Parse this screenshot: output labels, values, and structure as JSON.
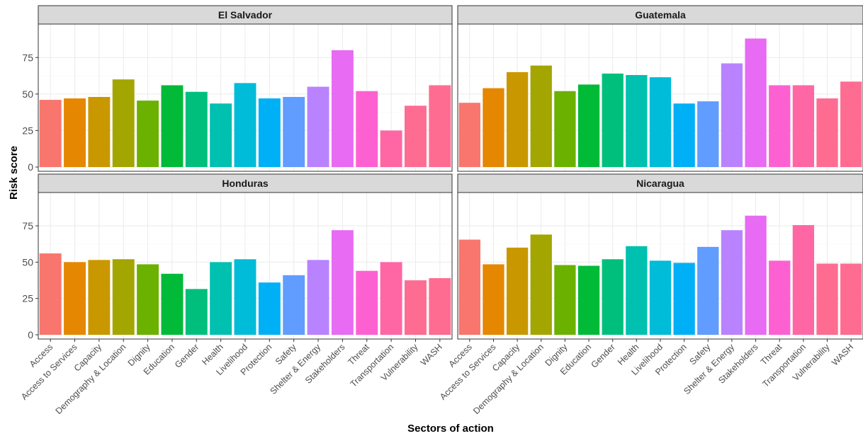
{
  "chart_data": {
    "type": "bar",
    "xlabel": "Sectors of action",
    "ylabel": "Risk score",
    "ylim": [
      0,
      95
    ],
    "yticks": [
      0,
      25,
      50,
      75
    ],
    "grid": true,
    "legend": "none",
    "categories": [
      "Access",
      "Access to Services",
      "Capacity",
      "Demography & Location",
      "Dignity",
      "Education",
      "Gender",
      "Health",
      "Livelihood",
      "Protection",
      "Safety",
      "Shelter & Energy",
      "Stakeholders",
      "Threat",
      "Transportation",
      "Vulnerability",
      "WASH"
    ],
    "colors": [
      "#F8766D",
      "#E58700",
      "#C99800",
      "#A3A500",
      "#6BB100",
      "#00BA38",
      "#00BF7D",
      "#00C0AF",
      "#00BCD8",
      "#00B0F6",
      "#619CFF",
      "#B983FF",
      "#E76BF3",
      "#FD61D1",
      "#FF67A4",
      "#FF6C91",
      "#FF6C91"
    ],
    "panels": [
      {
        "title": "El Salvador",
        "categories": [
          "Access",
          "Access to Services",
          "Capacity",
          "Demography & Location",
          "Dignity",
          "Education",
          "Gender",
          "Health",
          "Livelihood",
          "Protection",
          "Safety",
          "Shelter & Energy",
          "Stakeholders",
          "Threat",
          "Transportation",
          "Vulnerability",
          "WASH"
        ],
        "values": [
          46,
          47,
          48,
          60,
          45.5,
          56,
          51.5,
          43.5,
          57.5,
          47,
          48,
          55,
          80,
          52,
          25,
          42,
          56
        ]
      },
      {
        "title": "Guatemala",
        "categories": [
          "Access",
          "Access to Services",
          "Capacity",
          "Demography & Location",
          "Dignity",
          "Education",
          "Gender",
          "Health",
          "Livelihood",
          "Protection",
          "Safety",
          "Shelter & Energy",
          "Stakeholders",
          "Threat",
          "Transportation",
          "Vulnerability",
          "WASH"
        ],
        "values": [
          44,
          54,
          65,
          69.5,
          52,
          56.5,
          64,
          63,
          61.5,
          43.5,
          45,
          71,
          88,
          56,
          56,
          47,
          58.5
        ]
      },
      {
        "title": "Honduras",
        "categories": [
          "Access",
          "Access to Services",
          "Capacity",
          "Demography & Location",
          "Dignity",
          "Education",
          "Gender",
          "Health",
          "Livelihood",
          "Protection",
          "Safety",
          "Shelter & Energy",
          "Stakeholders",
          "Threat",
          "Transportation",
          "Vulnerability",
          "WASH"
        ],
        "values": [
          56,
          50,
          51.5,
          52,
          48.5,
          42,
          31.5,
          50,
          52,
          36,
          41,
          51.5,
          72,
          44,
          50,
          37.5,
          39
        ]
      },
      {
        "title": "Nicaragua",
        "categories": [
          "Access",
          "Access to Services",
          "Capacity",
          "Demography & Location",
          "Dignity",
          "Education",
          "Gender",
          "Health",
          "Livelihood",
          "Protection",
          "Safety",
          "Shelter & Energy",
          "Stakeholders",
          "Threat",
          "Transportation",
          "Vulnerability",
          "WASH"
        ],
        "values": [
          65.5,
          48.5,
          60,
          69,
          48,
          47.5,
          52,
          61,
          51,
          49.5,
          60.5,
          72,
          82,
          51,
          75.5,
          49,
          49
        ]
      }
    ]
  }
}
